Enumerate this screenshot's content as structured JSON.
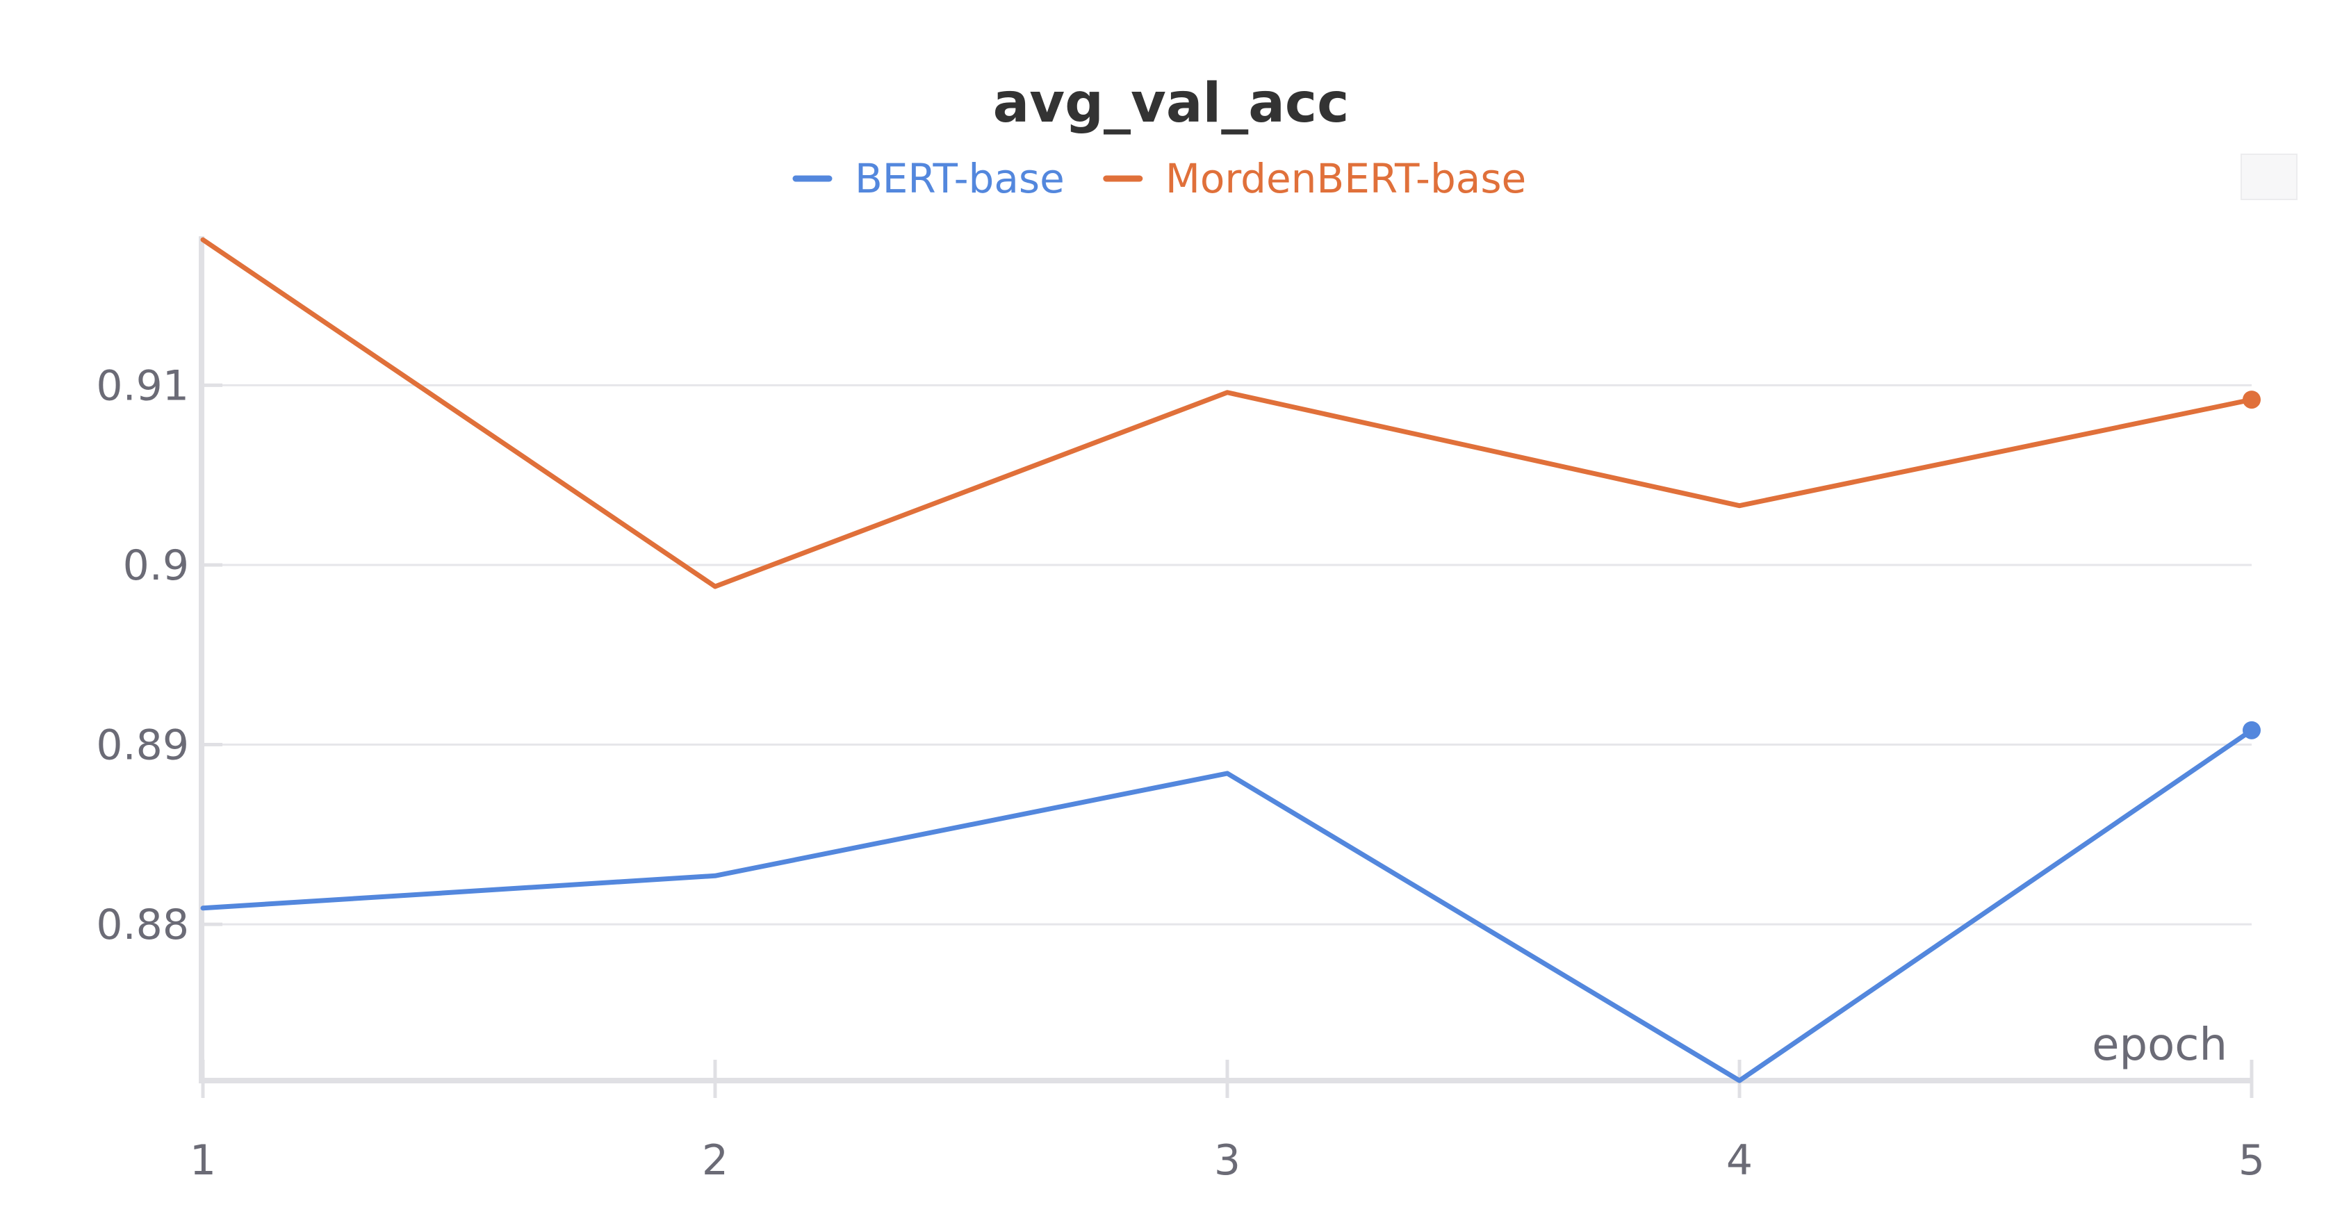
{
  "chart_data": {
    "type": "line",
    "title": "avg_val_acc",
    "xlabel": "epoch",
    "ylabel": "",
    "x": [
      1,
      2,
      3,
      4,
      5
    ],
    "x_ticks": [
      "1",
      "2",
      "3",
      "4",
      "5"
    ],
    "xlim": [
      1,
      5
    ],
    "y_ticks": [
      {
        "value": 0.88,
        "label": "0.88"
      },
      {
        "value": 0.89,
        "label": "0.89"
      },
      {
        "value": 0.9,
        "label": "0.9"
      },
      {
        "value": 0.91,
        "label": "0.91"
      }
    ],
    "ylim": [
      0.8713,
      0.9181
    ],
    "grid": true,
    "legend_position": "top-center",
    "series": [
      {
        "name": "BERT-base",
        "color": "#5387dd",
        "values": [
          0.8809,
          0.8827,
          0.8884,
          0.8713,
          0.8908
        ],
        "end_marker": true
      },
      {
        "name": "MordenBERT-base",
        "color": "#e0703a",
        "values": [
          0.9181,
          0.8988,
          0.9096,
          0.9033,
          0.9092
        ],
        "end_marker": true
      }
    ]
  }
}
